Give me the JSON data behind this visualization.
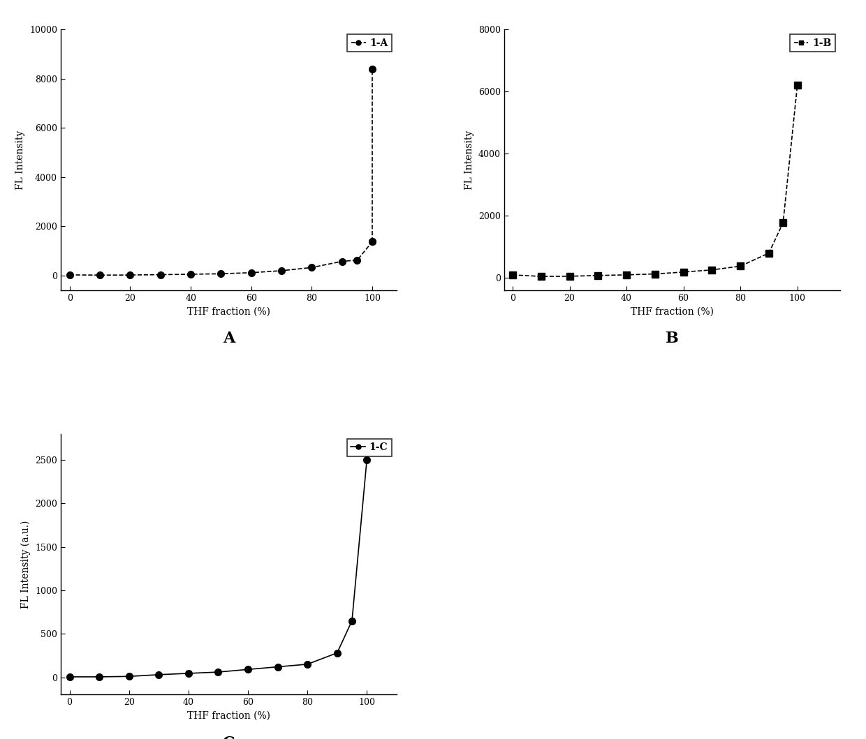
{
  "A": {
    "x": [
      0,
      10,
      20,
      30,
      40,
      50,
      60,
      70,
      80,
      90,
      95,
      100
    ],
    "y": [
      30,
      20,
      25,
      40,
      55,
      75,
      120,
      200,
      330,
      580,
      630,
      1380
    ],
    "peak_x": [
      100
    ],
    "peak_y": [
      8400
    ],
    "label": "1-A",
    "ylabel": "FL Intensity",
    "xlabel": "THF fraction (%)",
    "ylim": [
      -600,
      10000
    ],
    "yticks": [
      0,
      2000,
      4000,
      6000,
      8000,
      10000
    ],
    "xlim": [
      -3,
      108
    ],
    "xticks": [
      0,
      20,
      40,
      60,
      80,
      100
    ],
    "sublabel": "A",
    "marker": "o",
    "linestyle": "--"
  },
  "B": {
    "x": [
      0,
      10,
      20,
      30,
      40,
      50,
      60,
      70,
      80,
      90,
      95,
      100
    ],
    "y": [
      100,
      50,
      55,
      80,
      100,
      130,
      190,
      260,
      380,
      800,
      1780,
      6200
    ],
    "peak_x": [],
    "peak_y": [],
    "label": "1-B",
    "ylabel": "FL Intensity",
    "xlabel": "THF fraction (%)",
    "ylim": [
      -400,
      8000
    ],
    "yticks": [
      0,
      2000,
      4000,
      6000,
      8000
    ],
    "xlim": [
      -3,
      115
    ],
    "xticks": [
      0,
      20,
      40,
      60,
      80,
      100
    ],
    "sublabel": "B",
    "marker": "s",
    "linestyle": "--"
  },
  "C": {
    "x": [
      0,
      10,
      20,
      30,
      40,
      50,
      60,
      70,
      80,
      90,
      95,
      100
    ],
    "y": [
      5,
      5,
      10,
      30,
      45,
      60,
      90,
      120,
      150,
      280,
      650,
      2500
    ],
    "peak_x": [],
    "peak_y": [],
    "label": "1-C",
    "ylabel": "FL Intensity (a.u.)",
    "xlabel": "THF fraction (%)",
    "ylim": [
      -200,
      2800
    ],
    "yticks": [
      0,
      500,
      1000,
      1500,
      2000,
      2500
    ],
    "xlim": [
      -3,
      110
    ],
    "xticks": [
      0,
      20,
      40,
      60,
      80,
      100
    ],
    "sublabel": "C",
    "marker": "o",
    "linestyle": "-"
  },
  "line_color": "#000000",
  "marker_size": 7,
  "linewidth": 1.2,
  "background_color": "#ffffff",
  "font_size_label": 10,
  "font_size_tick": 9,
  "font_size_legend": 10,
  "font_size_sublabel": 16
}
